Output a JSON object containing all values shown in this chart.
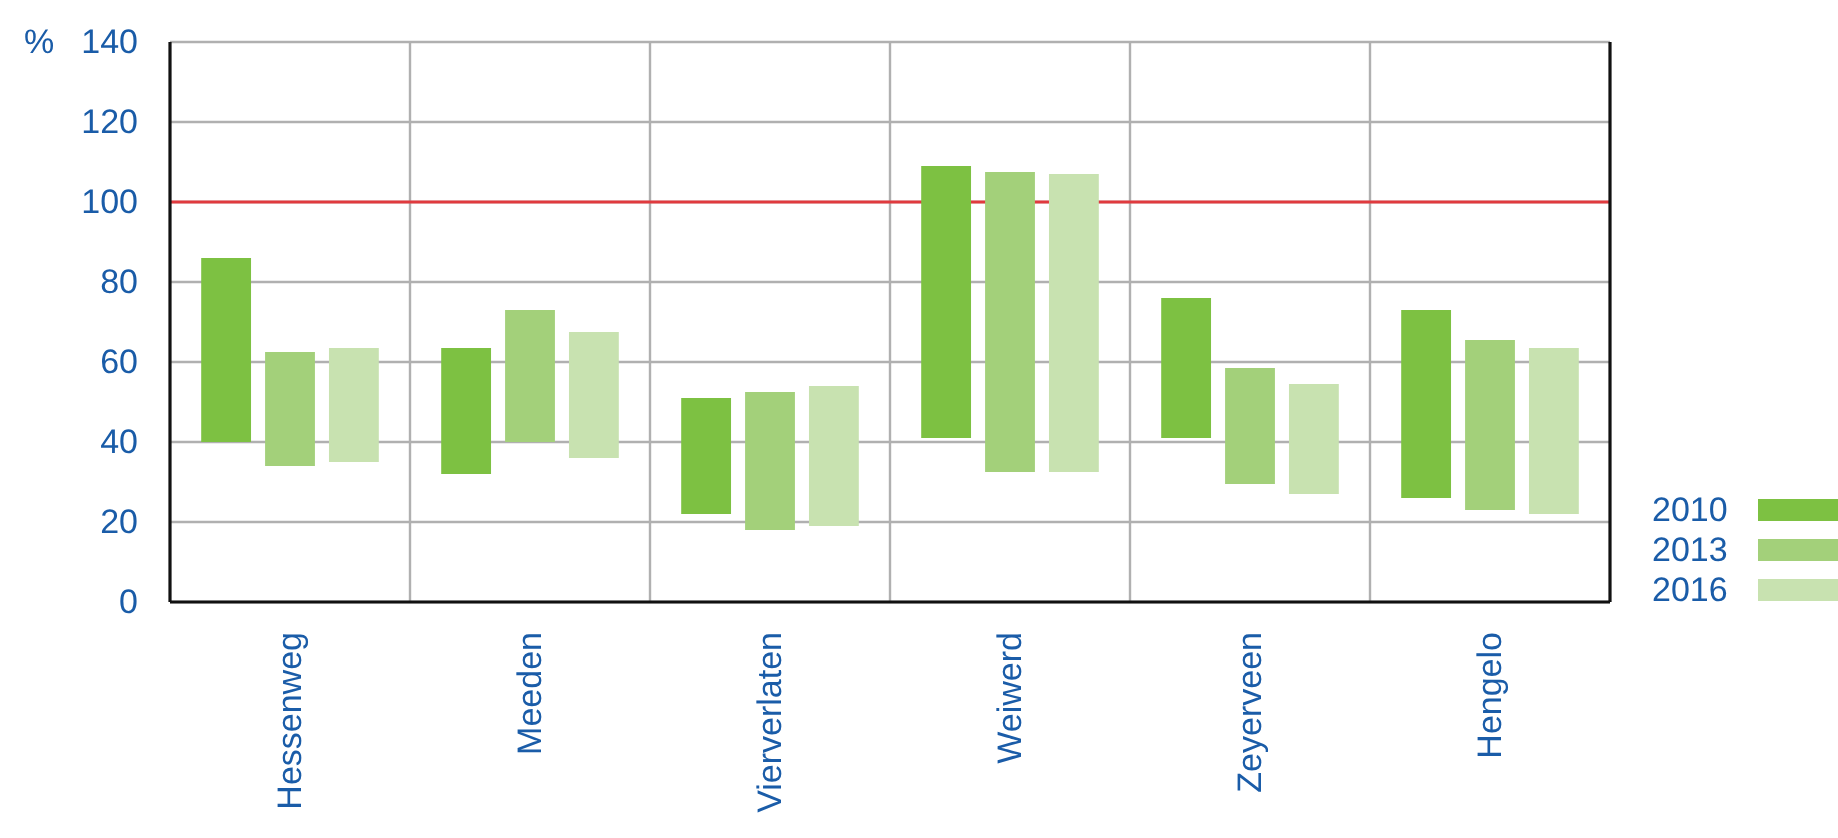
{
  "chart_data": {
    "type": "bar",
    "ylabel": "%",
    "categories": [
      "Hessenweg",
      "Meeden",
      "Vierverlaten",
      "Weiwerd",
      "Zeyerveen",
      "Hengelo"
    ],
    "series": [
      {
        "name": "2010",
        "color": "#7dc142",
        "base": [
          40,
          32,
          22,
          41,
          41,
          26
        ],
        "values": [
          46,
          31.5,
          29,
          68,
          35,
          47
        ]
      },
      {
        "name": "2013",
        "color": "#a3d07a",
        "base": [
          34,
          40,
          18,
          32.5,
          29.5,
          23
        ],
        "values": [
          28.5,
          33,
          34.5,
          75,
          29,
          42.5
        ]
      },
      {
        "name": "2016",
        "color": "#c8e2b0",
        "base": [
          35,
          36,
          19,
          32.5,
          27,
          22
        ],
        "values": [
          28.5,
          31.5,
          35,
          74.5,
          27.5,
          41.5
        ]
      }
    ],
    "ylim": [
      0,
      140
    ],
    "yticks": [
      0,
      20,
      40,
      60,
      80,
      100,
      120,
      140
    ],
    "grid": true,
    "legend": "bottom right",
    "ref_lines": [
      {
        "axis": "y",
        "value": 100,
        "color": "#e03a3e"
      }
    ]
  }
}
